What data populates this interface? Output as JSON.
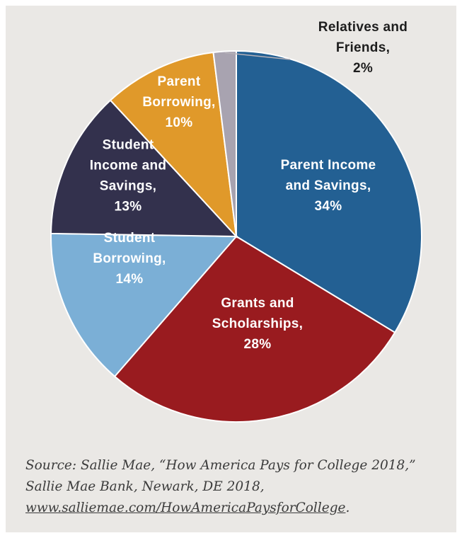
{
  "chart_data": {
    "type": "pie",
    "slices": [
      {
        "label_lines": [
          "Parent Income",
          "and Savings,",
          "34%"
        ],
        "value": 34,
        "color": "#236093",
        "text_color": "#ffffff"
      },
      {
        "label_lines": [
          "Grants and",
          "Scholarships,",
          "28%"
        ],
        "value": 28,
        "color": "#991b1f",
        "text_color": "#ffffff"
      },
      {
        "label_lines": [
          "Student",
          "Borrowing,",
          "14%"
        ],
        "value": 14,
        "color": "#7bafd6",
        "text_color": "#ffffff"
      },
      {
        "label_lines": [
          "Student",
          "Income and",
          "Savings,",
          "13%"
        ],
        "value": 13,
        "color": "#33314d",
        "text_color": "#ffffff"
      },
      {
        "label_lines": [
          "Parent",
          "Borrowing,",
          "10%"
        ],
        "value": 10,
        "color": "#e0992a",
        "text_color": "#ffffff"
      },
      {
        "label_lines": [
          "Relatives and",
          "Friends,",
          "2%"
        ],
        "value": 2,
        "color": "#a8a3b0",
        "text_color": "#1d1d1d"
      }
    ]
  },
  "source": {
    "prefix": "Source: Sallie Mae, “How America Pays for College 2018,” Sallie Mae Bank, Newark, DE 2018, ",
    "link_text": "www.salliemae.com/HowAmericaPaysforCollege",
    "suffix": "."
  }
}
